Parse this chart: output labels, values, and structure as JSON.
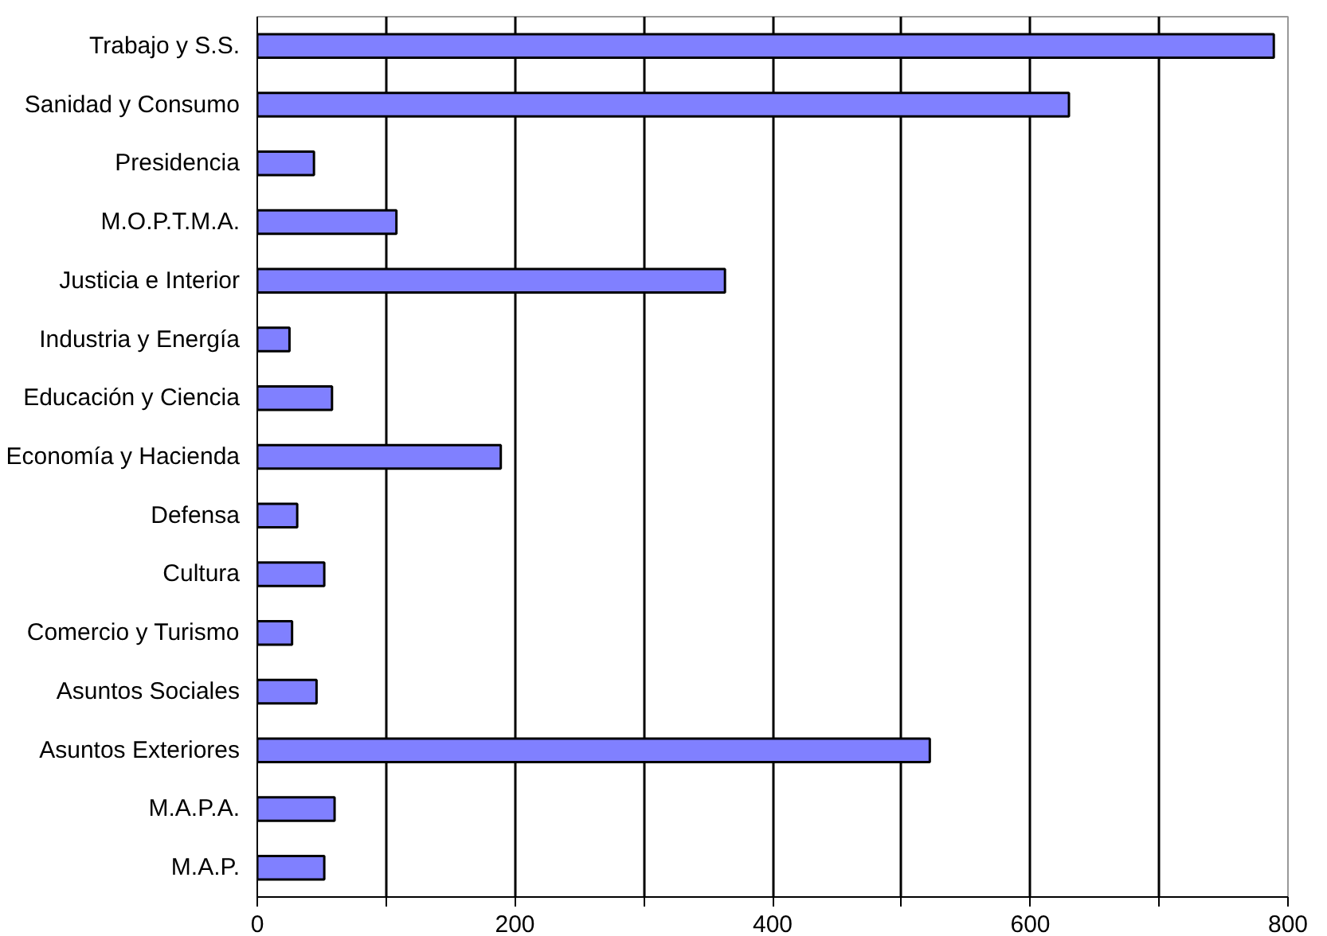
{
  "chart_data": {
    "type": "bar",
    "orientation": "horizontal",
    "categories": [
      "Trabajo y S.S.",
      "Sanidad y Consumo",
      "Presidencia",
      "M.O.P.T.M.A.",
      "Justicia e Interior",
      "Industria y Energía",
      "Educación y Ciencia",
      "Economía y Hacienda",
      "Defensa",
      "Cultura",
      "Comercio y Turismo",
      "Asuntos Sociales",
      "Asuntos Exteriores",
      "M.A.P.A.",
      "M.A.P."
    ],
    "values": [
      789,
      630,
      44,
      108,
      363,
      25,
      58,
      189,
      31,
      52,
      27,
      46,
      522,
      60,
      52
    ],
    "color": "#8080ff",
    "xlim": [
      0,
      800
    ],
    "xticks": [
      0,
      {
        "value": 100,
        "label": null
      },
      200,
      {
        "value": 300,
        "label": null
      },
      400,
      {
        "value": 500,
        "label": null
      },
      600,
      {
        "value": 700,
        "label": null
      },
      800
    ],
    "grid": "x"
  }
}
